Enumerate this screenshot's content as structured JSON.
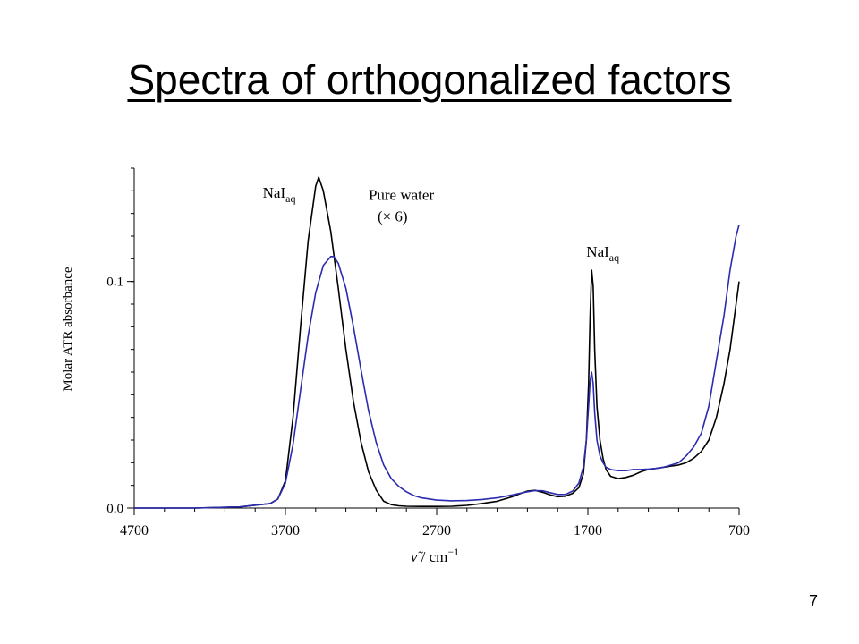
{
  "slide": {
    "title": "Spectra of orthogonalized factors",
    "page_number": "7"
  },
  "chart_data": {
    "type": "line",
    "xlabel": "ν̃ / cm⁻¹",
    "ylabel": "Molar ATR absorbance",
    "xlim": [
      4700,
      700
    ],
    "ylim": [
      0.0,
      0.15
    ],
    "x_reversed": true,
    "x_ticks": [
      4700,
      3700,
      2700,
      1700,
      700
    ],
    "x_tick_labels": [
      "4700",
      "3700",
      "2700",
      "1700",
      "700"
    ],
    "y_ticks": [
      0.0,
      0.1
    ],
    "y_tick_labels": [
      "0.0",
      "0.1"
    ],
    "grid": false,
    "series": [
      {
        "name": "NaI(aq)",
        "color": "#000000",
        "x": [
          4700,
          4300,
          4000,
          3800,
          3750,
          3700,
          3650,
          3600,
          3550,
          3500,
          3480,
          3450,
          3400,
          3350,
          3300,
          3250,
          3200,
          3150,
          3100,
          3050,
          3000,
          2950,
          2900,
          2800,
          2700,
          2600,
          2500,
          2400,
          2300,
          2200,
          2150,
          2100,
          2050,
          2000,
          1950,
          1900,
          1850,
          1800,
          1760,
          1730,
          1710,
          1695,
          1685,
          1675,
          1665,
          1655,
          1640,
          1620,
          1600,
          1580,
          1550,
          1500,
          1450,
          1400,
          1350,
          1300,
          1250,
          1200,
          1150,
          1100,
          1050,
          1000,
          950,
          900,
          850,
          800,
          760,
          720,
          700
        ],
        "y": [
          0.0,
          0.0,
          0.0005,
          0.002,
          0.004,
          0.012,
          0.04,
          0.08,
          0.118,
          0.142,
          0.146,
          0.14,
          0.122,
          0.097,
          0.07,
          0.047,
          0.029,
          0.016,
          0.008,
          0.003,
          0.0015,
          0.001,
          0.0008,
          0.0007,
          0.0007,
          0.0008,
          0.0012,
          0.002,
          0.003,
          0.005,
          0.0063,
          0.0075,
          0.0078,
          0.007,
          0.0058,
          0.005,
          0.0052,
          0.0065,
          0.009,
          0.015,
          0.03,
          0.055,
          0.085,
          0.105,
          0.098,
          0.07,
          0.045,
          0.03,
          0.022,
          0.017,
          0.014,
          0.013,
          0.0135,
          0.0145,
          0.016,
          0.017,
          0.0175,
          0.018,
          0.0185,
          0.019,
          0.02,
          0.022,
          0.025,
          0.03,
          0.04,
          0.055,
          0.07,
          0.09,
          0.1
        ]
      },
      {
        "name": "Pure water (× 6)",
        "color": "#2b2bb0",
        "x": [
          4700,
          4300,
          4000,
          3800,
          3750,
          3700,
          3650,
          3600,
          3550,
          3500,
          3450,
          3400,
          3380,
          3350,
          3300,
          3250,
          3200,
          3150,
          3100,
          3050,
          3000,
          2950,
          2900,
          2850,
          2800,
          2700,
          2600,
          2500,
          2400,
          2300,
          2200,
          2150,
          2100,
          2050,
          2000,
          1950,
          1900,
          1850,
          1800,
          1760,
          1730,
          1710,
          1695,
          1685,
          1675,
          1665,
          1655,
          1640,
          1620,
          1600,
          1580,
          1550,
          1500,
          1450,
          1400,
          1350,
          1300,
          1250,
          1200,
          1150,
          1100,
          1050,
          1000,
          950,
          900,
          850,
          800,
          760,
          720,
          700
        ],
        "y": [
          0.0,
          0.0,
          0.0005,
          0.002,
          0.004,
          0.011,
          0.028,
          0.052,
          0.076,
          0.095,
          0.107,
          0.111,
          0.111,
          0.108,
          0.097,
          0.08,
          0.061,
          0.043,
          0.029,
          0.019,
          0.013,
          0.0095,
          0.0072,
          0.0055,
          0.0045,
          0.0035,
          0.0032,
          0.0033,
          0.0038,
          0.0045,
          0.0058,
          0.0065,
          0.0072,
          0.0077,
          0.0076,
          0.0068,
          0.006,
          0.006,
          0.0075,
          0.011,
          0.018,
          0.03,
          0.045,
          0.056,
          0.06,
          0.055,
          0.042,
          0.03,
          0.023,
          0.02,
          0.018,
          0.017,
          0.0165,
          0.0165,
          0.017,
          0.017,
          0.0172,
          0.0175,
          0.018,
          0.019,
          0.02,
          0.023,
          0.027,
          0.033,
          0.045,
          0.065,
          0.085,
          0.105,
          0.12,
          0.125
        ]
      }
    ],
    "annotations": [
      {
        "id": "nai-left",
        "base": "NaI",
        "sub": "aq",
        "at_x": 3850,
        "at_y": 0.137
      },
      {
        "id": "water-label",
        "line1": "Pure water",
        "line2": "(× 6)",
        "at_x": 3150,
        "at_y": 0.136
      },
      {
        "id": "nai-right",
        "base": "NaI",
        "sub": "aq",
        "at_x": 1710,
        "at_y": 0.111
      }
    ]
  }
}
